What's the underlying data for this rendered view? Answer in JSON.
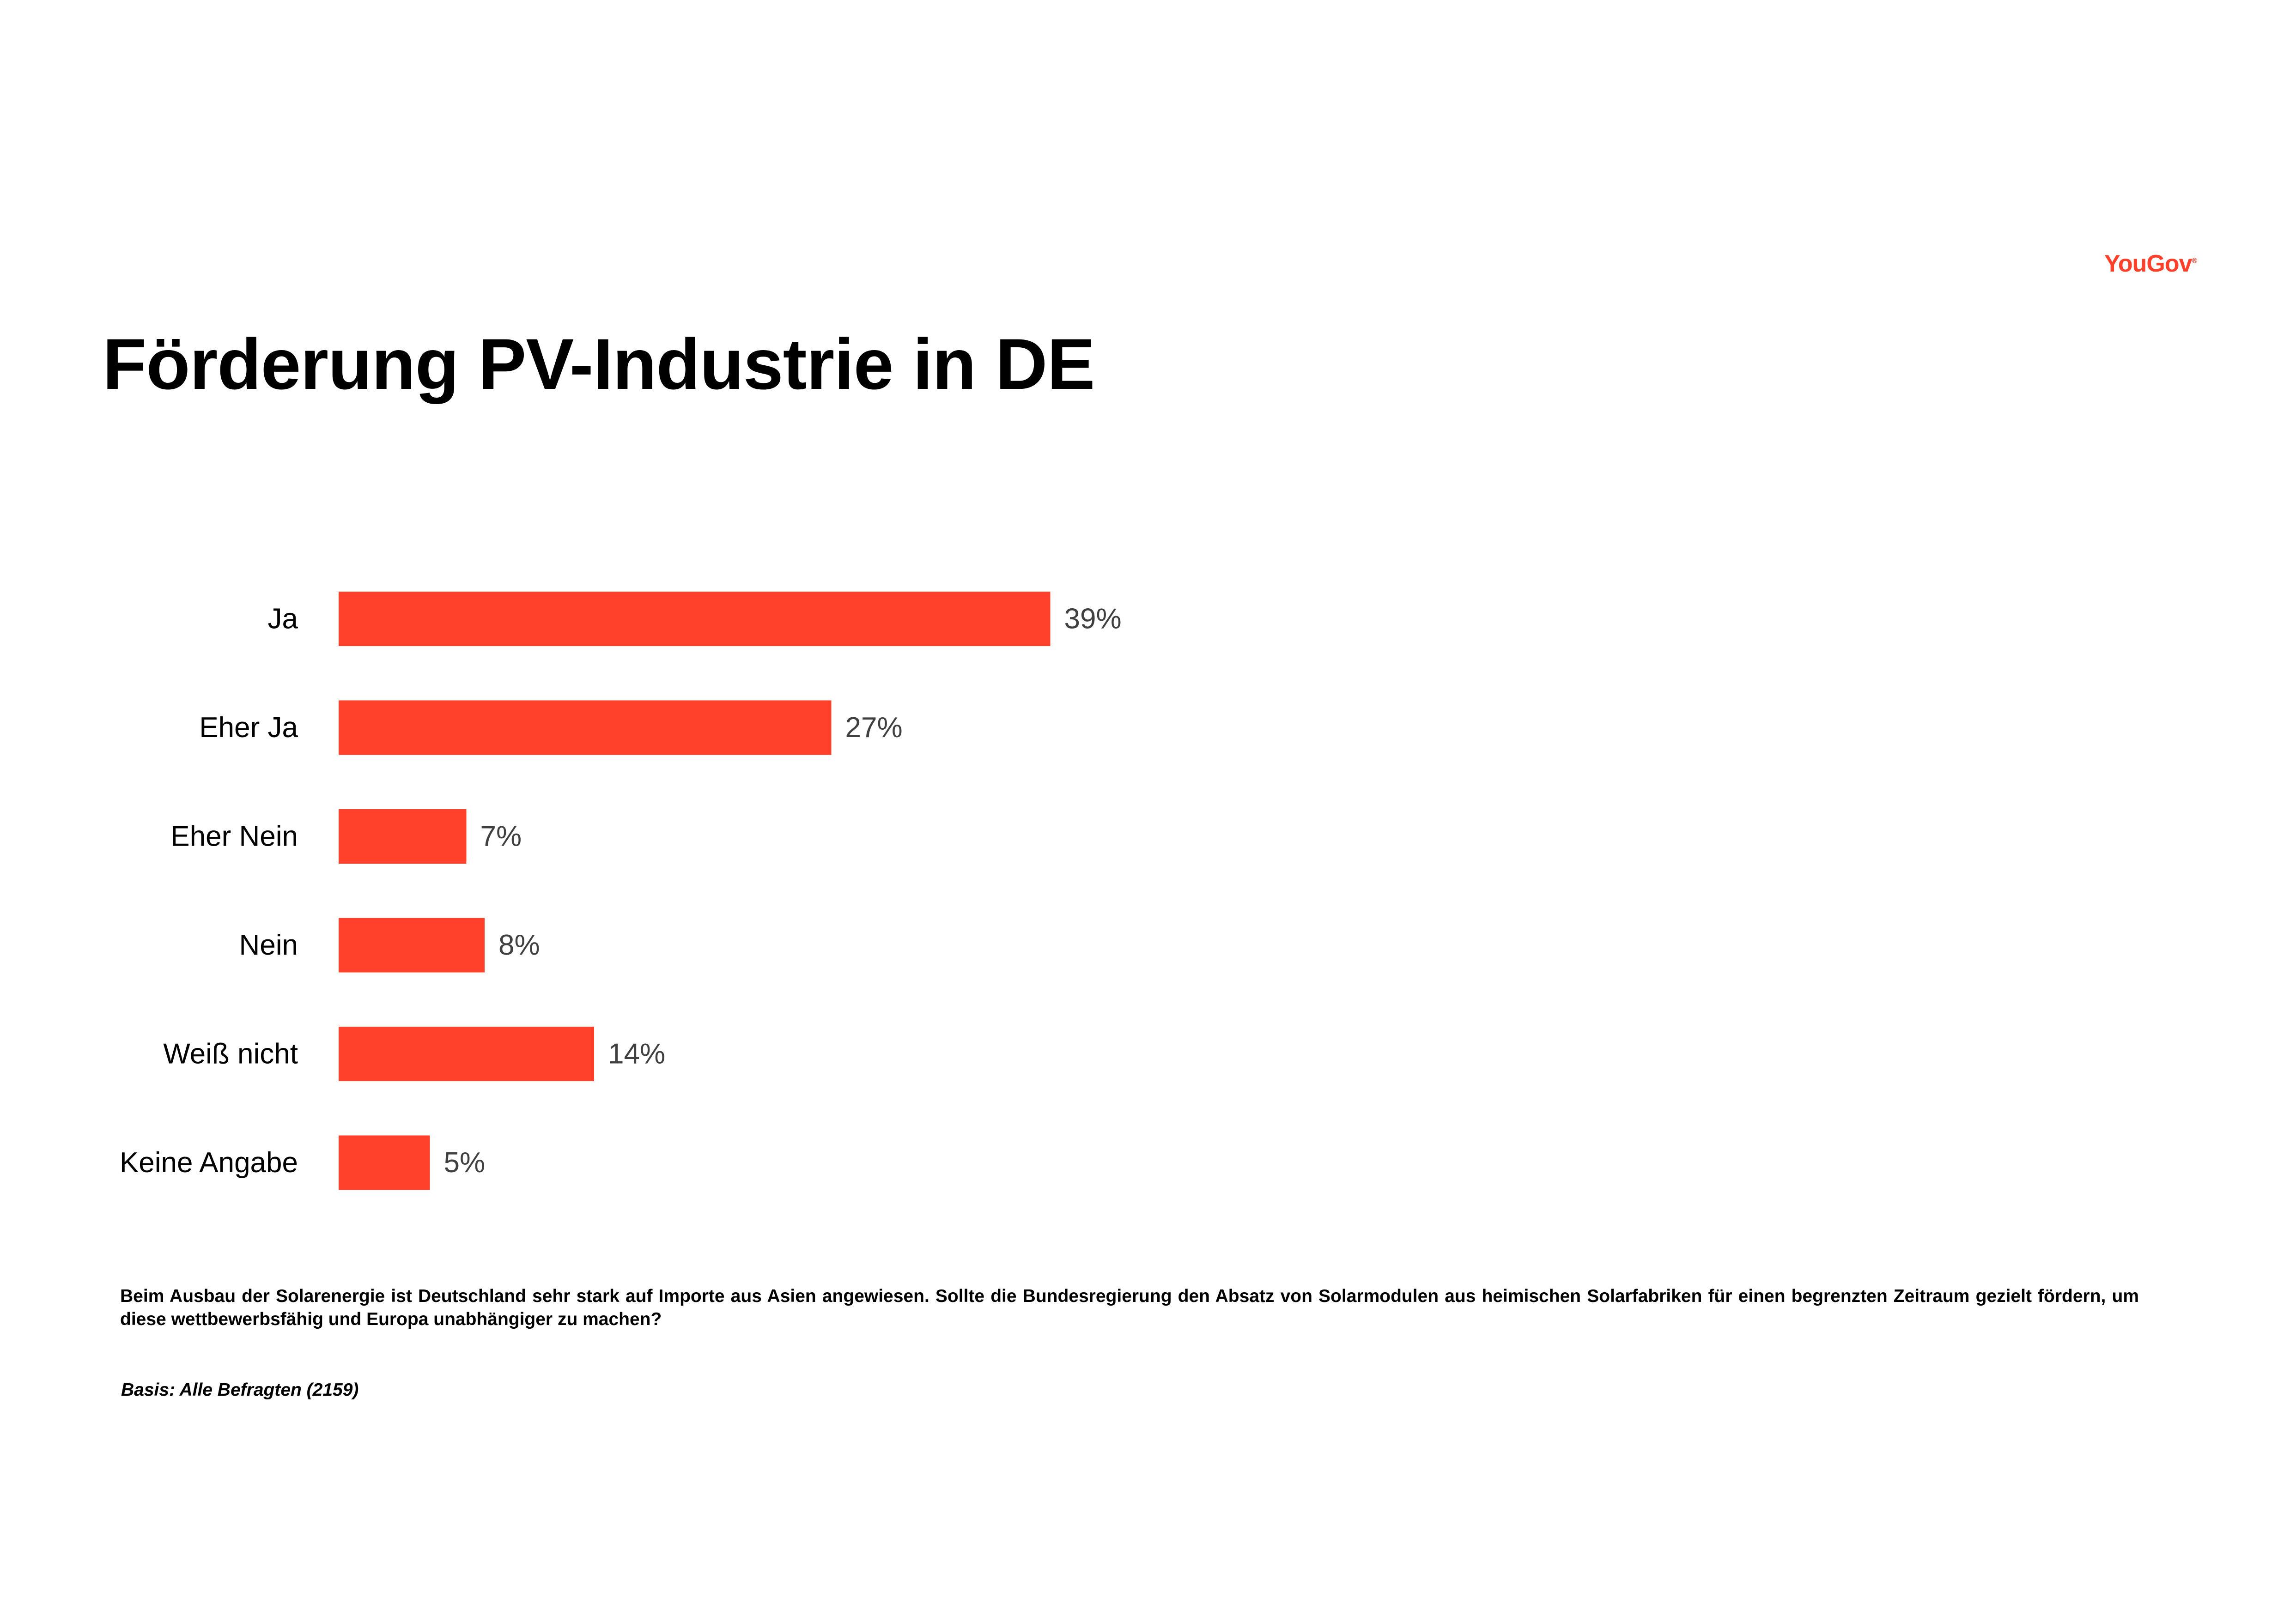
{
  "brand": {
    "name": "YouGov",
    "trademark": "®",
    "color": "#FF412C"
  },
  "title": "Förderung PV-Industrie in DE",
  "question": "Beim Ausbau der Solarenergie ist Deutschland sehr stark auf Importe aus Asien angewiesen. Sollte die Bundesregierung den Absatz von Solarmodulen aus heimischen Solarfabriken für einen begrenzten Zeitraum gezielt fördern, um diese wettbewerbsfähig und Europa unabhängiger zu machen?",
  "basis": "Basis: Alle Befragten (2159)",
  "chart_data": {
    "type": "bar",
    "orientation": "horizontal",
    "categories": [
      "Ja",
      "Eher Ja",
      "Eher Nein",
      "Nein",
      "Weiß nicht",
      "Keine Angabe"
    ],
    "values": [
      39,
      27,
      7,
      8,
      14,
      5
    ],
    "value_labels": [
      "39%",
      "27%",
      "7%",
      "8%",
      "14%",
      "5%"
    ],
    "unit": "%",
    "xlim": [
      0,
      100
    ],
    "grid": false,
    "legend": "none",
    "bar_color": "#FF412C",
    "label_color": "#000000",
    "value_label_color": "#404040"
  }
}
